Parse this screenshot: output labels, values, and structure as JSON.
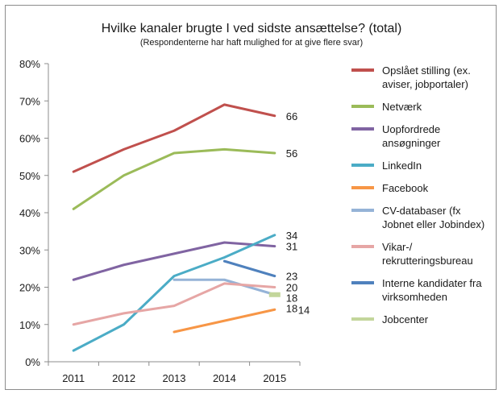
{
  "chart_data": {
    "type": "line",
    "title": "Hvilke kanaler brugte I ved sidste ansættelse? (total)",
    "subtitle": "(Respondenterne har haft mulighed for at give flere svar)",
    "xlabel": "",
    "ylabel": "",
    "categories": [
      "2011",
      "2012",
      "2013",
      "2014",
      "2015"
    ],
    "y_ticks": [
      "0%",
      "10%",
      "20%",
      "30%",
      "40%",
      "50%",
      "60%",
      "70%",
      "80%"
    ],
    "ylim": [
      0,
      80
    ],
    "grid": false,
    "legend_position": "right",
    "series": [
      {
        "name": "Opslået stilling (ex. aviser, jobportaler)",
        "legend_lines": [
          "Opslået stilling (ex.",
          "aviser, jobportaler)"
        ],
        "color": "#c0504d",
        "values": [
          51,
          57,
          62,
          69,
          66
        ],
        "end_label": "66"
      },
      {
        "name": "Netværk",
        "legend_lines": [
          "Netværk"
        ],
        "color": "#9bbb59",
        "values": [
          41,
          50,
          56,
          57,
          56
        ],
        "end_label": "56"
      },
      {
        "name": "Uopfordrede ansøgninger",
        "legend_lines": [
          "Uopfordrede",
          "ansøgninger"
        ],
        "color": "#8064a2",
        "values": [
          22,
          26,
          29,
          32,
          31
        ],
        "end_label": "31"
      },
      {
        "name": "LinkedIn",
        "legend_lines": [
          "LinkedIn"
        ],
        "color": "#4bacc6",
        "values": [
          3,
          10,
          23,
          28,
          34
        ],
        "end_label": "34"
      },
      {
        "name": "Facebook",
        "legend_lines": [
          "Facebook"
        ],
        "color": "#f79646",
        "values": [
          null,
          null,
          8,
          11,
          14
        ],
        "end_label": "14"
      },
      {
        "name": "CV-databaser (fx Jobnet eller Jobindex)",
        "legend_lines": [
          "CV-databaser (fx",
          "Jobnet eller Jobindex)"
        ],
        "color": "#95b3d7",
        "values": [
          null,
          null,
          22,
          22,
          18
        ],
        "end_label": "18"
      },
      {
        "name": "Vikar-/ rekrutteringsbureau",
        "legend_lines": [
          "Vikar-/",
          "rekrutteringsbureau"
        ],
        "color": "#e6a6a5",
        "values": [
          10,
          13,
          15,
          21,
          20
        ],
        "end_label": "20"
      },
      {
        "name": "Interne kandidater fra virksomheden",
        "legend_lines": [
          "Interne kandidater fra",
          "virksomheden"
        ],
        "color": "#4f81bd",
        "values": [
          null,
          null,
          null,
          27,
          23
        ],
        "end_label": "23"
      },
      {
        "name": "Jobcenter",
        "legend_lines": [
          "Jobcenter"
        ],
        "color": "#c3d69b",
        "values": [
          null,
          null,
          null,
          null,
          18
        ],
        "end_label": "18"
      }
    ]
  }
}
